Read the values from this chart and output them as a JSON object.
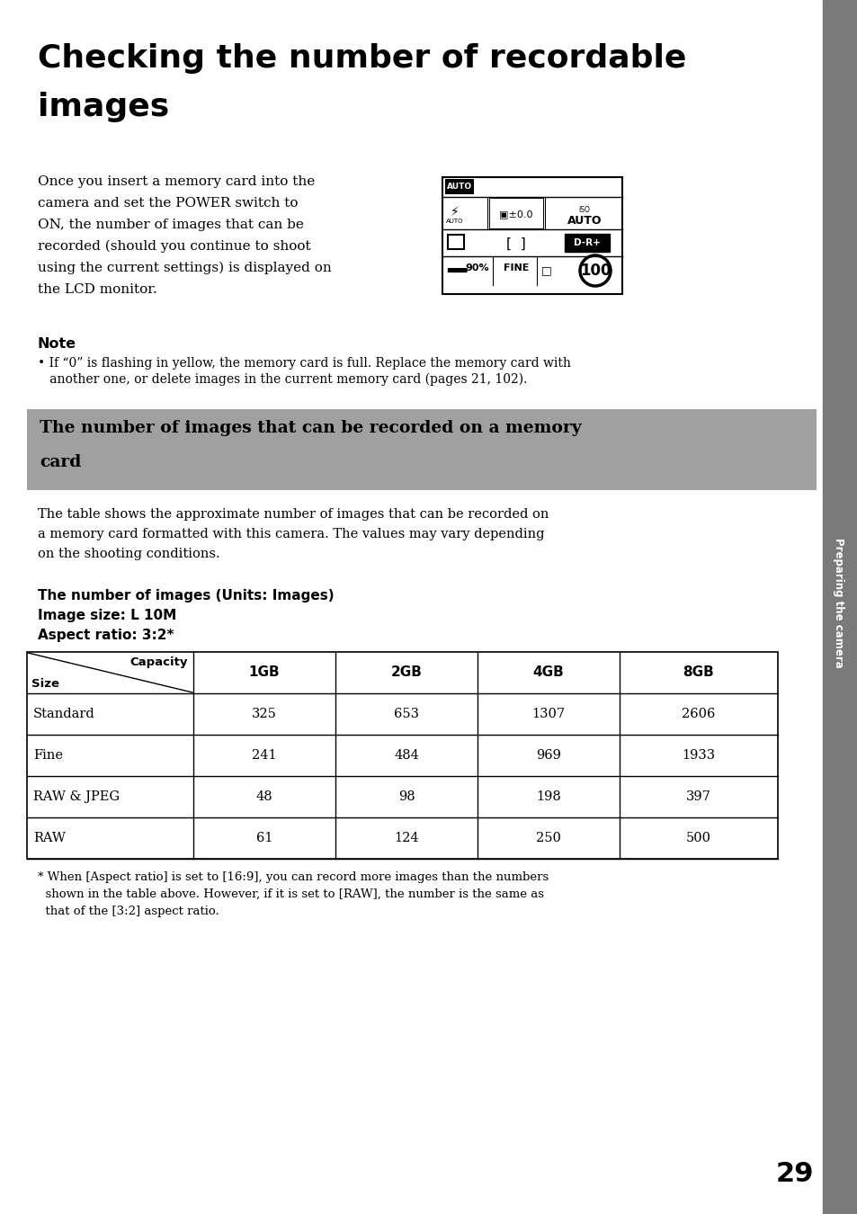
{
  "title_line1": "Checking the number of recordable",
  "title_line2": "images",
  "bg_color": "#ffffff",
  "sidebar_color": "#7a7a7a",
  "page_number": "29",
  "intro_text_lines": [
    "Once you insert a memory card into the",
    "camera and set the POWER switch to",
    "ON, the number of images that can be",
    "recorded (should you continue to shoot",
    "using the current settings) is displayed on",
    "the LCD monitor."
  ],
  "note_title": "Note",
  "note_bullet_line1": "• If “0” is flashing in yellow, the memory card is full. Replace the memory card with",
  "note_bullet_line2": "   another one, or delete images in the current memory card (pages 21, 102).",
  "section_title_line1": "The number of images that can be recorded on a memory",
  "section_title_line2": "card",
  "section_bg": "#a0a0a0",
  "body_text_lines": [
    "The table shows the approximate number of images that can be recorded on",
    "a memory card formatted with this camera. The values may vary depending",
    "on the shooting conditions."
  ],
  "tbl_head1": "The number of images (Units: Images)",
  "tbl_head2": "Image size: L 10M",
  "tbl_head3": "Aspect ratio: 3:2*",
  "table_col_headers": [
    "1GB",
    "2GB",
    "4GB",
    "8GB"
  ],
  "table_rows": [
    [
      "Standard",
      "325",
      "653",
      "1307",
      "2606"
    ],
    [
      "Fine",
      "241",
      "484",
      "969",
      "1933"
    ],
    [
      "RAW & JPEG",
      "48",
      "98",
      "198",
      "397"
    ],
    [
      "RAW",
      "61",
      "124",
      "250",
      "500"
    ]
  ],
  "footnote_lines": [
    "* When [Aspect ratio] is set to [16:9], you can record more images than the numbers",
    "  shown in the table above. However, if it is set to [RAW], the number is the same as",
    "  that of the [3:2] aspect ratio."
  ],
  "sidebar_text": "Preparing the camera"
}
